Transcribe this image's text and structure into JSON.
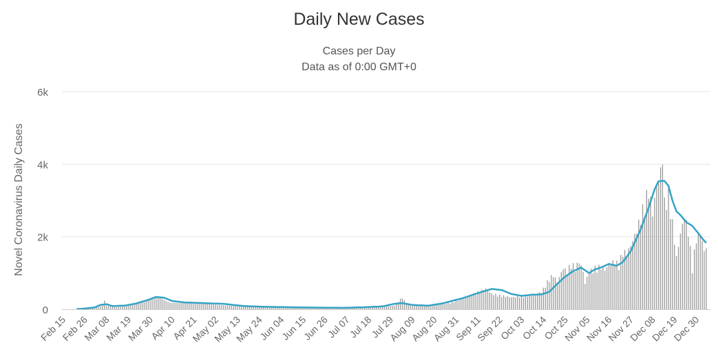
{
  "chart_data": {
    "type": "bar",
    "title": "Daily New Cases",
    "subtitle": [
      "Cases per Day",
      "Data as of 0:00 GMT+0"
    ],
    "ylabel": "Novel Coronavirus Daily Cases",
    "xlabel": "",
    "ylim": [
      0,
      6000
    ],
    "y_ticks": [
      0,
      2000,
      4000,
      6000
    ],
    "y_tick_labels": [
      "0",
      "2k",
      "4k",
      "6k"
    ],
    "x_tick_labels": [
      "Feb 15",
      "Feb 26",
      "Mar 08",
      "Mar 19",
      "Mar 30",
      "Apr 10",
      "Apr 21",
      "May 02",
      "May 13",
      "May 24",
      "Jun 04",
      "Jun 15",
      "Jun 26",
      "Jul 07",
      "Jul 18",
      "Jul 29",
      "Aug 09",
      "Aug 20",
      "Aug 31",
      "Sep 11",
      "Sep 22",
      "Oct 03",
      "Oct 14",
      "Oct 25",
      "Nov 05",
      "Nov 16",
      "Nov 27",
      "Dec 08",
      "Dec 19",
      "Dec 30"
    ],
    "tick_interval_days": 11,
    "grid": true,
    "colors": {
      "bars": "#999999",
      "average_line": "#33a3c5",
      "grid": "#e6e6e6"
    },
    "daily_cases_anchors": [
      [
        0,
        0
      ],
      [
        10,
        5
      ],
      [
        15,
        30
      ],
      [
        19,
        100
      ],
      [
        20,
        240
      ],
      [
        21,
        100
      ],
      [
        25,
        60
      ],
      [
        30,
        80
      ],
      [
        35,
        150
      ],
      [
        40,
        200
      ],
      [
        44,
        300
      ],
      [
        48,
        340
      ],
      [
        50,
        260
      ],
      [
        53,
        180
      ],
      [
        60,
        170
      ],
      [
        70,
        150
      ],
      [
        80,
        110
      ],
      [
        90,
        80
      ],
      [
        100,
        60
      ],
      [
        110,
        55
      ],
      [
        120,
        50
      ],
      [
        130,
        45
      ],
      [
        140,
        40
      ],
      [
        150,
        55
      ],
      [
        160,
        80
      ],
      [
        166,
        110
      ],
      [
        170,
        360
      ],
      [
        172,
        150
      ],
      [
        180,
        90
      ],
      [
        190,
        150
      ],
      [
        195,
        200
      ],
      [
        200,
        300
      ],
      [
        205,
        420
      ],
      [
        210,
        550
      ],
      [
        212,
        600
      ],
      [
        215,
        450
      ],
      [
        220,
        400
      ],
      [
        225,
        350
      ],
      [
        230,
        380
      ],
      [
        235,
        420
      ],
      [
        240,
        500
      ],
      [
        242,
        700
      ],
      [
        244,
        900
      ],
      [
        246,
        1000
      ],
      [
        248,
        800
      ],
      [
        251,
        1200
      ],
      [
        253,
        1100
      ],
      [
        255,
        1350
      ],
      [
        257,
        1200
      ],
      [
        259,
        1400
      ],
      [
        261,
        1100
      ],
      [
        262,
        750
      ],
      [
        264,
        1100
      ],
      [
        267,
        1200
      ],
      [
        270,
        1250
      ],
      [
        272,
        1150
      ],
      [
        275,
        1350
      ],
      [
        277,
        1400
      ],
      [
        279,
        1300
      ],
      [
        281,
        1700
      ],
      [
        283,
        1600
      ],
      [
        286,
        2000
      ],
      [
        288,
        2300
      ],
      [
        290,
        2700
      ],
      [
        292,
        3100
      ],
      [
        294,
        3500
      ],
      [
        296,
        2800
      ],
      [
        298,
        3600
      ],
      [
        300,
        4000
      ],
      [
        301,
        4500
      ],
      [
        302,
        3100
      ],
      [
        304,
        3400
      ],
      [
        306,
        2500
      ],
      [
        308,
        1500
      ],
      [
        310,
        2200
      ],
      [
        312,
        2700
      ],
      [
        314,
        2300
      ],
      [
        316,
        1200
      ],
      [
        318,
        2100
      ],
      [
        320,
        2200
      ],
      [
        322,
        1700
      ],
      [
        323,
        1800
      ]
    ],
    "average_anchors": [
      [
        0,
        0
      ],
      [
        8,
        10
      ],
      [
        15,
        50
      ],
      [
        18,
        120
      ],
      [
        21,
        140
      ],
      [
        24,
        90
      ],
      [
        30,
        100
      ],
      [
        36,
        160
      ],
      [
        42,
        260
      ],
      [
        46,
        340
      ],
      [
        50,
        320
      ],
      [
        54,
        230
      ],
      [
        60,
        190
      ],
      [
        70,
        170
      ],
      [
        80,
        150
      ],
      [
        90,
        90
      ],
      [
        100,
        70
      ],
      [
        110,
        60
      ],
      [
        120,
        50
      ],
      [
        130,
        45
      ],
      [
        140,
        40
      ],
      [
        150,
        55
      ],
      [
        160,
        80
      ],
      [
        166,
        150
      ],
      [
        170,
        170
      ],
      [
        175,
        120
      ],
      [
        183,
        100
      ],
      [
        190,
        160
      ],
      [
        200,
        300
      ],
      [
        210,
        480
      ],
      [
        215,
        560
      ],
      [
        220,
        530
      ],
      [
        225,
        420
      ],
      [
        230,
        370
      ],
      [
        235,
        400
      ],
      [
        240,
        410
      ],
      [
        244,
        480
      ],
      [
        248,
        700
      ],
      [
        252,
        900
      ],
      [
        256,
        1050
      ],
      [
        260,
        1150
      ],
      [
        264,
        1000
      ],
      [
        267,
        1100
      ],
      [
        270,
        1150
      ],
      [
        274,
        1250
      ],
      [
        278,
        1200
      ],
      [
        281,
        1300
      ],
      [
        285,
        1600
      ],
      [
        290,
        2200
      ],
      [
        294,
        2800
      ],
      [
        297,
        3300
      ],
      [
        299,
        3530
      ],
      [
        302,
        3540
      ],
      [
        304,
        3400
      ],
      [
        306,
        3000
      ],
      [
        308,
        2700
      ],
      [
        310,
        2600
      ],
      [
        313,
        2400
      ],
      [
        316,
        2300
      ],
      [
        319,
        2100
      ],
      [
        321,
        1950
      ],
      [
        323,
        1830
      ]
    ]
  }
}
